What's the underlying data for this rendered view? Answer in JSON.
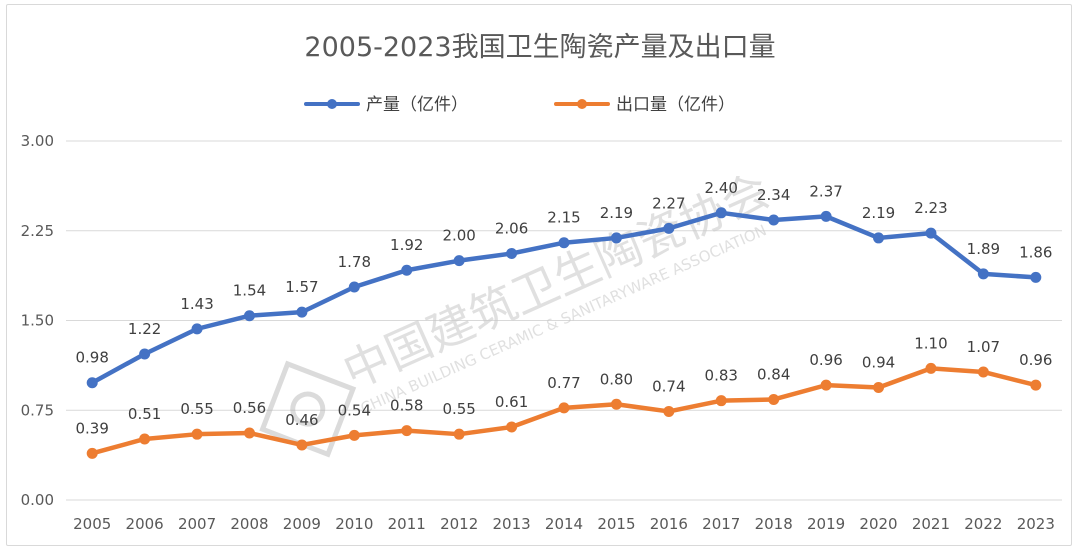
{
  "chart_data": {
    "type": "line",
    "title": "2005-2023我国卫生陶瓷产量及出口量",
    "categories": [
      "2005",
      "2006",
      "2007",
      "2008",
      "2009",
      "2010",
      "2011",
      "2012",
      "2013",
      "2014",
      "2015",
      "2016",
      "2017",
      "2018",
      "2019",
      "2020",
      "2021",
      "2022",
      "2023"
    ],
    "series": [
      {
        "name": "产量（亿件）",
        "color": "#4472C4",
        "values": [
          0.98,
          1.22,
          1.43,
          1.54,
          1.57,
          1.78,
          1.92,
          2.0,
          2.06,
          2.15,
          2.19,
          2.27,
          2.4,
          2.34,
          2.37,
          2.19,
          2.23,
          1.89,
          1.86
        ]
      },
      {
        "name": "出口量（亿件）",
        "color": "#ED7D31",
        "values": [
          0.39,
          0.51,
          0.55,
          0.56,
          0.46,
          0.54,
          0.58,
          0.55,
          0.61,
          0.77,
          0.8,
          0.74,
          0.83,
          0.84,
          0.96,
          0.94,
          1.1,
          1.07,
          0.96
        ]
      }
    ],
    "ylim": [
      0,
      3
    ],
    "yticks": [
      "0.00",
      "0.75",
      "1.50",
      "2.25",
      "3.00"
    ],
    "grid": true,
    "legend": "top"
  },
  "watermark": {
    "text_cn": "中国建筑卫生陶瓷协会",
    "text_en": "CHINA BUILDING CERAMIC & SANITARYWARE ASSOCIATION"
  }
}
